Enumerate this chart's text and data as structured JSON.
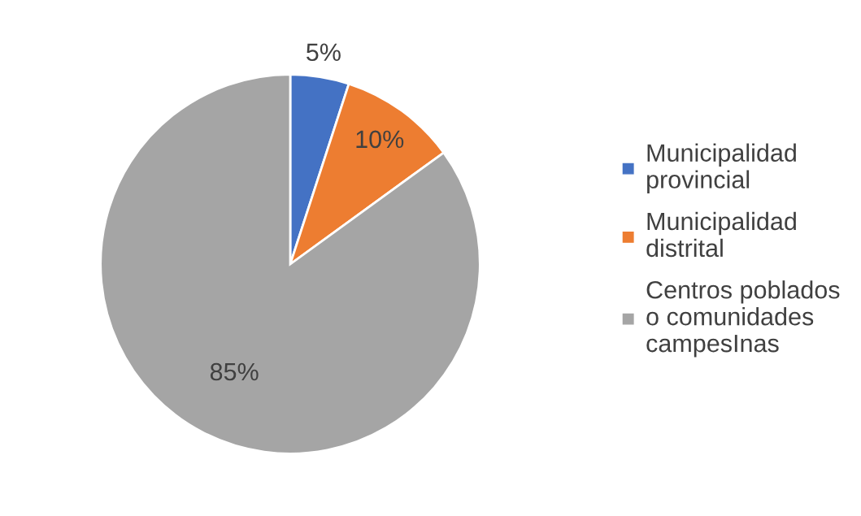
{
  "chart_data": {
    "type": "pie",
    "categories": [
      "Municipalidad\nprovincial",
      "Municipalidad\ndistrital",
      "Centros poblados\no comunidades\ncampesInas"
    ],
    "values": [
      5,
      10,
      85
    ],
    "value_labels": [
      "5%",
      "10%",
      "85%"
    ],
    "colors": [
      "#4472c4",
      "#ed7d31",
      "#a5a5a5"
    ],
    "legend": "right"
  }
}
